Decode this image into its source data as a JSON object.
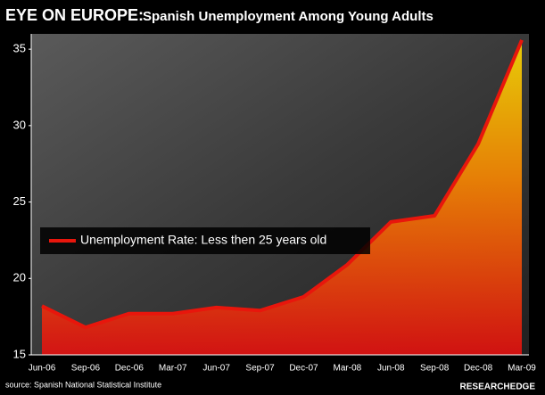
{
  "chart_data": {
    "type": "line",
    "title_lead": "EYE ON EUROPE:",
    "title": "Spanish Unemployment Among Young Adults",
    "categories": [
      "Jun-06",
      "Sep-06",
      "Dec-06",
      "Mar-07",
      "Jun-07",
      "Sep-07",
      "Dec-07",
      "Mar-08",
      "Jun-08",
      "Sep-08",
      "Dec-08",
      "Mar-09"
    ],
    "series": [
      {
        "name": "Unemployment Rate: Less then 25 years old",
        "color": "#e8160c",
        "values": [
          18.2,
          16.8,
          17.7,
          17.7,
          18.1,
          17.9,
          18.8,
          20.9,
          23.7,
          24.1,
          28.8,
          35.6
        ]
      }
    ],
    "ylim": [
      15,
      36
    ],
    "yticks": [
      15,
      20,
      25,
      30,
      35
    ],
    "area_fill": true,
    "legend": "left",
    "source": "source: Spanish National Statistical Institute",
    "logo": "RESEARCHEDGE"
  }
}
